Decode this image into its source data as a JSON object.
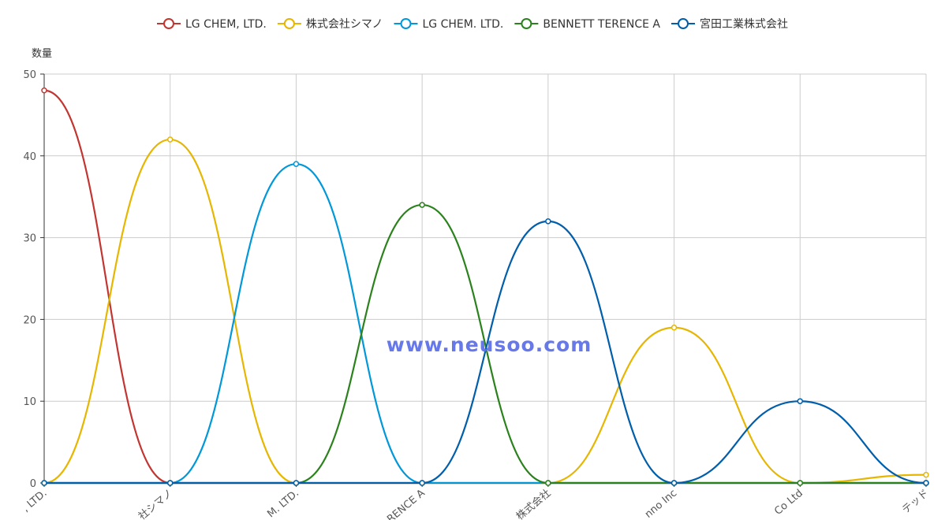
{
  "chart_data": {
    "type": "line",
    "ylabel": "数量",
    "ylim": [
      0,
      50
    ],
    "yticks": [
      0,
      10,
      20,
      30,
      40,
      50
    ],
    "categories": [
      "LG CHEM, LTD.",
      "株式会社シマノ",
      "LG CHEM. LTD.",
      "BENNETT TERENCE A",
      "宮田工業株式会社",
      "…no Inc",
      "…Co Ltd",
      "…テッド"
    ],
    "x_tick_labels": [
      ", LTD.",
      "社シマノ",
      "M. LTD.",
      "RENCE A",
      "株式会社",
      "nno Inc",
      "Co Ltd",
      "テッド"
    ],
    "series": [
      {
        "name": "LG CHEM, LTD.",
        "color": "#c23531",
        "values": [
          48,
          0,
          0,
          0,
          0,
          0,
          0,
          0
        ]
      },
      {
        "name": "株式会社シマノ",
        "color": "#e6b600",
        "values": [
          0,
          42,
          0,
          0,
          0,
          19,
          0,
          1
        ]
      },
      {
        "name": "LG CHEM. LTD.",
        "color": "#0098d9",
        "values": [
          0,
          0,
          39,
          0,
          0,
          0,
          0,
          0
        ]
      },
      {
        "name": "BENNETT TERENCE A",
        "color": "#2b821d",
        "values": [
          0,
          0,
          0,
          34,
          0,
          0,
          0,
          0
        ]
      },
      {
        "name": "宮田工業株式会社",
        "color": "#005eaa",
        "values": [
          0,
          0,
          0,
          0,
          32,
          0,
          10,
          0
        ]
      }
    ],
    "legend_position": "top-center",
    "grid": true,
    "smooth": true
  },
  "watermark": "www.neusoo.com"
}
